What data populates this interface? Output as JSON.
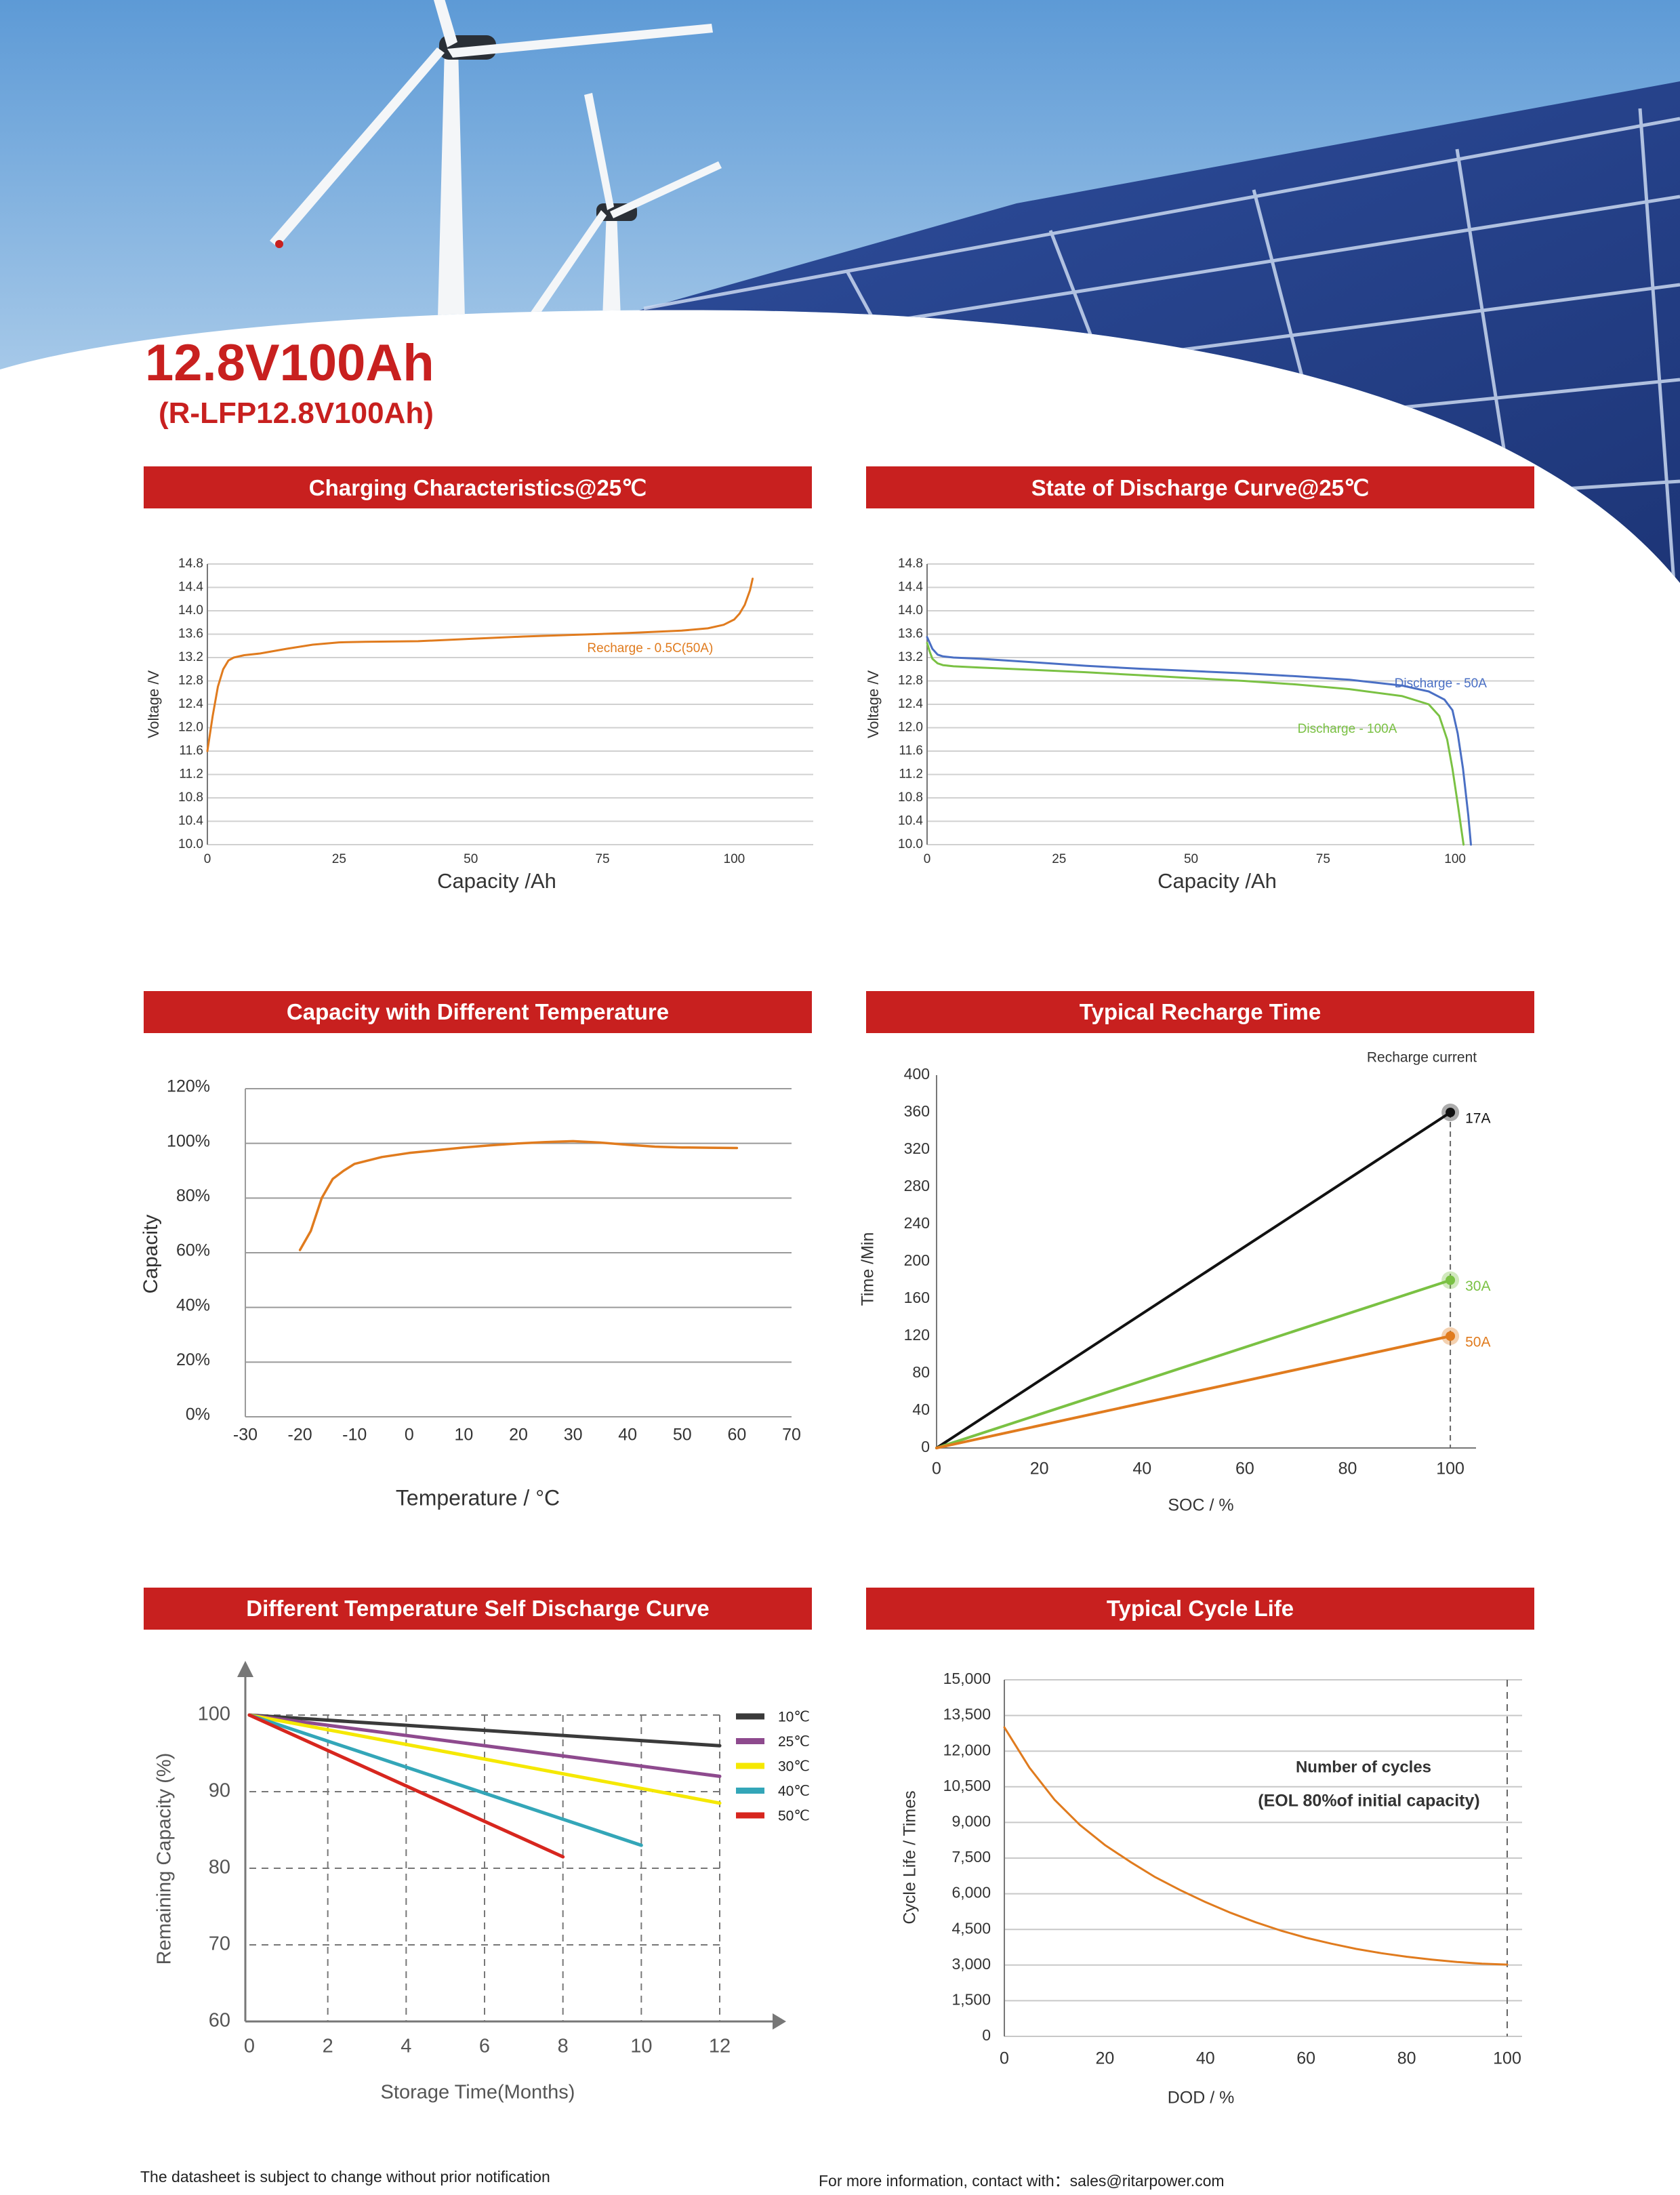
{
  "header": {
    "title": "12.8V100Ah",
    "subtitle": "(R-LFP12.8V100Ah)"
  },
  "footer": {
    "left": "The datasheet is subject to change without prior notification",
    "right": "For more information, contact with：sales@ritarpower.com"
  },
  "colors": {
    "brand_red": "#c8201f",
    "orange": "#e07b1e",
    "blue": "#4a6fc4",
    "green": "#7ac143",
    "black": "#111111",
    "sky": "#7fb2e0",
    "panel": "#23408c"
  },
  "panels": [
    {
      "title": "Charging Characteristics@25℃"
    },
    {
      "title": "State of Discharge Curve@25℃"
    },
    {
      "title": "Capacity with Different Temperature"
    },
    {
      "title": "Typical Recharge Time"
    },
    {
      "title": "Different Temperature Self Discharge Curve"
    },
    {
      "title": "Typical Cycle Life"
    }
  ],
  "chart_data": [
    {
      "type": "line",
      "title": "Charging Characteristics@25℃",
      "xlabel": "Capacity  /Ah",
      "ylabel": "Voltage  /V",
      "xlim": [
        0,
        115
      ],
      "ylim": [
        10.0,
        14.8
      ],
      "x_ticks": [
        "0",
        "25",
        "50",
        "75",
        "100"
      ],
      "y_ticks": [
        "10.0",
        "10.4",
        "10.8",
        "11.2",
        "11.6",
        "12.0",
        "12.4",
        "12.8",
        "13.2",
        "13.6",
        "14.0",
        "14.4",
        "14.8"
      ],
      "grid": true,
      "series": [
        {
          "name": "Recharge - 0.5C(50A)",
          "color": "#e07b1e",
          "x": [
            0,
            1,
            2,
            3,
            4,
            5,
            7,
            10,
            15,
            20,
            25,
            30,
            40,
            50,
            60,
            70,
            80,
            90,
            95,
            98,
            100,
            101,
            102,
            103,
            103.5
          ],
          "y": [
            11.6,
            12.2,
            12.7,
            13.0,
            13.15,
            13.2,
            13.24,
            13.27,
            13.35,
            13.42,
            13.46,
            13.47,
            13.48,
            13.52,
            13.56,
            13.59,
            13.62,
            13.66,
            13.7,
            13.76,
            13.85,
            13.95,
            14.1,
            14.35,
            14.55
          ]
        }
      ],
      "annotations": [
        {
          "text": "Recharge - 0.5C(50A)",
          "x": 96,
          "y": 13.35
        }
      ]
    },
    {
      "type": "line",
      "title": "State of Discharge Curve@25℃",
      "xlabel": "Capacity  /Ah",
      "ylabel": "Voltage  /V",
      "xlim": [
        0,
        115
      ],
      "ylim": [
        10.0,
        14.8
      ],
      "x_ticks": [
        "0",
        "25",
        "50",
        "75",
        "100"
      ],
      "y_ticks": [
        "10.0",
        "10.4",
        "10.8",
        "11.2",
        "11.6",
        "12.0",
        "12.4",
        "12.8",
        "13.2",
        "13.6",
        "14.0",
        "14.4",
        "14.8"
      ],
      "grid": true,
      "series": [
        {
          "name": "Discharge - 50A",
          "color": "#4a6fc4",
          "x": [
            0,
            0.5,
            1,
            2,
            3,
            5,
            10,
            20,
            30,
            40,
            50,
            60,
            70,
            80,
            90,
            95,
            98,
            99.5,
            100.5,
            101.5,
            102.5,
            103
          ],
          "y": [
            13.55,
            13.45,
            13.35,
            13.25,
            13.22,
            13.2,
            13.18,
            13.12,
            13.06,
            13.01,
            12.97,
            12.93,
            12.88,
            12.82,
            12.72,
            12.62,
            12.48,
            12.3,
            11.9,
            11.3,
            10.5,
            10.0
          ]
        },
        {
          "name": "Discharge - 100A",
          "color": "#7ac143",
          "x": [
            0,
            0.5,
            1,
            2,
            3,
            5,
            10,
            20,
            30,
            40,
            50,
            60,
            70,
            80,
            90,
            95,
            97,
            98.5,
            99.5,
            100.5,
            101.2,
            101.6
          ],
          "y": [
            13.45,
            13.3,
            13.18,
            13.1,
            13.07,
            13.05,
            13.03,
            12.99,
            12.95,
            12.9,
            12.85,
            12.8,
            12.74,
            12.66,
            12.54,
            12.4,
            12.2,
            11.8,
            11.3,
            10.7,
            10.25,
            10.0
          ]
        }
      ],
      "annotations": [
        {
          "text": "Discharge - 50A",
          "x": 106,
          "y": 12.75
        },
        {
          "text": "Discharge - 100A",
          "x": 89,
          "y": 11.97
        }
      ]
    },
    {
      "type": "line",
      "title": "Capacity with Different Temperature",
      "xlabel": "Temperature / °C",
      "ylabel": "Capacity",
      "xlim": [
        -30,
        70
      ],
      "ylim": [
        0,
        120
      ],
      "x_ticks": [
        "-30",
        "-20",
        "-10",
        "0",
        "10",
        "20",
        "30",
        "40",
        "50",
        "60",
        "70"
      ],
      "y_ticks": [
        "0%",
        "20%",
        "40%",
        "60%",
        "80%",
        "100%",
        "120%"
      ],
      "grid": true,
      "series": [
        {
          "color": "#e07b1e",
          "x": [
            -20,
            -18,
            -16,
            -14,
            -12,
            -10,
            -5,
            0,
            5,
            10,
            15,
            20,
            25,
            30,
            35,
            40,
            45,
            50,
            55,
            60
          ],
          "y": [
            61,
            68,
            80,
            87,
            90,
            92.5,
            95,
            96.5,
            97.5,
            98.5,
            99.3,
            100,
            100.5,
            100.8,
            100.3,
            99.5,
            98.8,
            98.5,
            98.4,
            98.3
          ]
        }
      ]
    },
    {
      "type": "line",
      "title": "Typical Recharge Time",
      "xlabel": "SOC / %",
      "ylabel": "Time /Min",
      "xlim": [
        0,
        105
      ],
      "ylim": [
        0,
        400
      ],
      "x_ticks": [
        "0",
        "20",
        "40",
        "60",
        "80",
        "100"
      ],
      "y_ticks": [
        "0",
        "40",
        "80",
        "120",
        "160",
        "200",
        "240",
        "280",
        "320",
        "360",
        "400"
      ],
      "grid": false,
      "legend": "Recharge current",
      "series": [
        {
          "name": "17A",
          "color": "#111111",
          "x": [
            0,
            100
          ],
          "y": [
            0,
            360
          ]
        },
        {
          "name": "30A",
          "color": "#7ac143",
          "x": [
            0,
            100
          ],
          "y": [
            0,
            180
          ]
        },
        {
          "name": "50A",
          "color": "#e07b1e",
          "x": [
            0,
            100
          ],
          "y": [
            0,
            120
          ]
        }
      ]
    },
    {
      "type": "line",
      "title": "Different Temperature Self Discharge Curve",
      "xlabel": "Storage Time(Months)",
      "ylabel": "Remaining Capacity (%)",
      "xlim": [
        0,
        12
      ],
      "ylim": [
        60,
        100
      ],
      "x_ticks": [
        "0",
        "2",
        "4",
        "6",
        "8",
        "10",
        "12"
      ],
      "y_ticks": [
        "60",
        "70",
        "80",
        "90",
        "100"
      ],
      "grid": true,
      "legend": "top-right",
      "series": [
        {
          "name": "10℃",
          "color": "#3a3a3a",
          "x": [
            0,
            12
          ],
          "y": [
            100,
            96
          ]
        },
        {
          "name": "25℃",
          "color": "#8e4a8e",
          "x": [
            0,
            12
          ],
          "y": [
            100,
            92
          ]
        },
        {
          "name": "30℃",
          "color": "#f5e800",
          "x": [
            0,
            12
          ],
          "y": [
            100,
            88.5
          ]
        },
        {
          "name": "40℃",
          "color": "#33a6b8",
          "x": [
            0,
            10
          ],
          "y": [
            100,
            83
          ]
        },
        {
          "name": "50℃",
          "color": "#d7261e",
          "x": [
            0,
            8
          ],
          "y": [
            100,
            81.5
          ]
        }
      ]
    },
    {
      "type": "line",
      "title": "Typical Cycle Life",
      "xlabel": "DOD / %",
      "ylabel": "Cycle Life / Times",
      "xlim": [
        0,
        100
      ],
      "ylim": [
        0,
        15000
      ],
      "x_ticks": [
        "0",
        "20",
        "40",
        "60",
        "80",
        "100"
      ],
      "y_ticks": [
        "0",
        "1,500",
        "3,000",
        "4,500",
        "6,000",
        "7,500",
        "9,000",
        "10,500",
        "12,000",
        "13,500",
        "15,000"
      ],
      "grid": true,
      "annotations": [
        {
          "text": "Number of cycles"
        },
        {
          "text": "(EOL 80%of initial capacity)"
        }
      ],
      "series": [
        {
          "color": "#e07b1e",
          "x": [
            0,
            5,
            10,
            15,
            20,
            25,
            30,
            35,
            40,
            45,
            50,
            55,
            60,
            65,
            70,
            75,
            80,
            85,
            90,
            95,
            100
          ],
          "y": [
            13000,
            11300,
            9950,
            8900,
            8050,
            7350,
            6700,
            6150,
            5650,
            5200,
            4800,
            4450,
            4150,
            3900,
            3680,
            3500,
            3350,
            3230,
            3130,
            3060,
            3020
          ]
        }
      ]
    }
  ]
}
